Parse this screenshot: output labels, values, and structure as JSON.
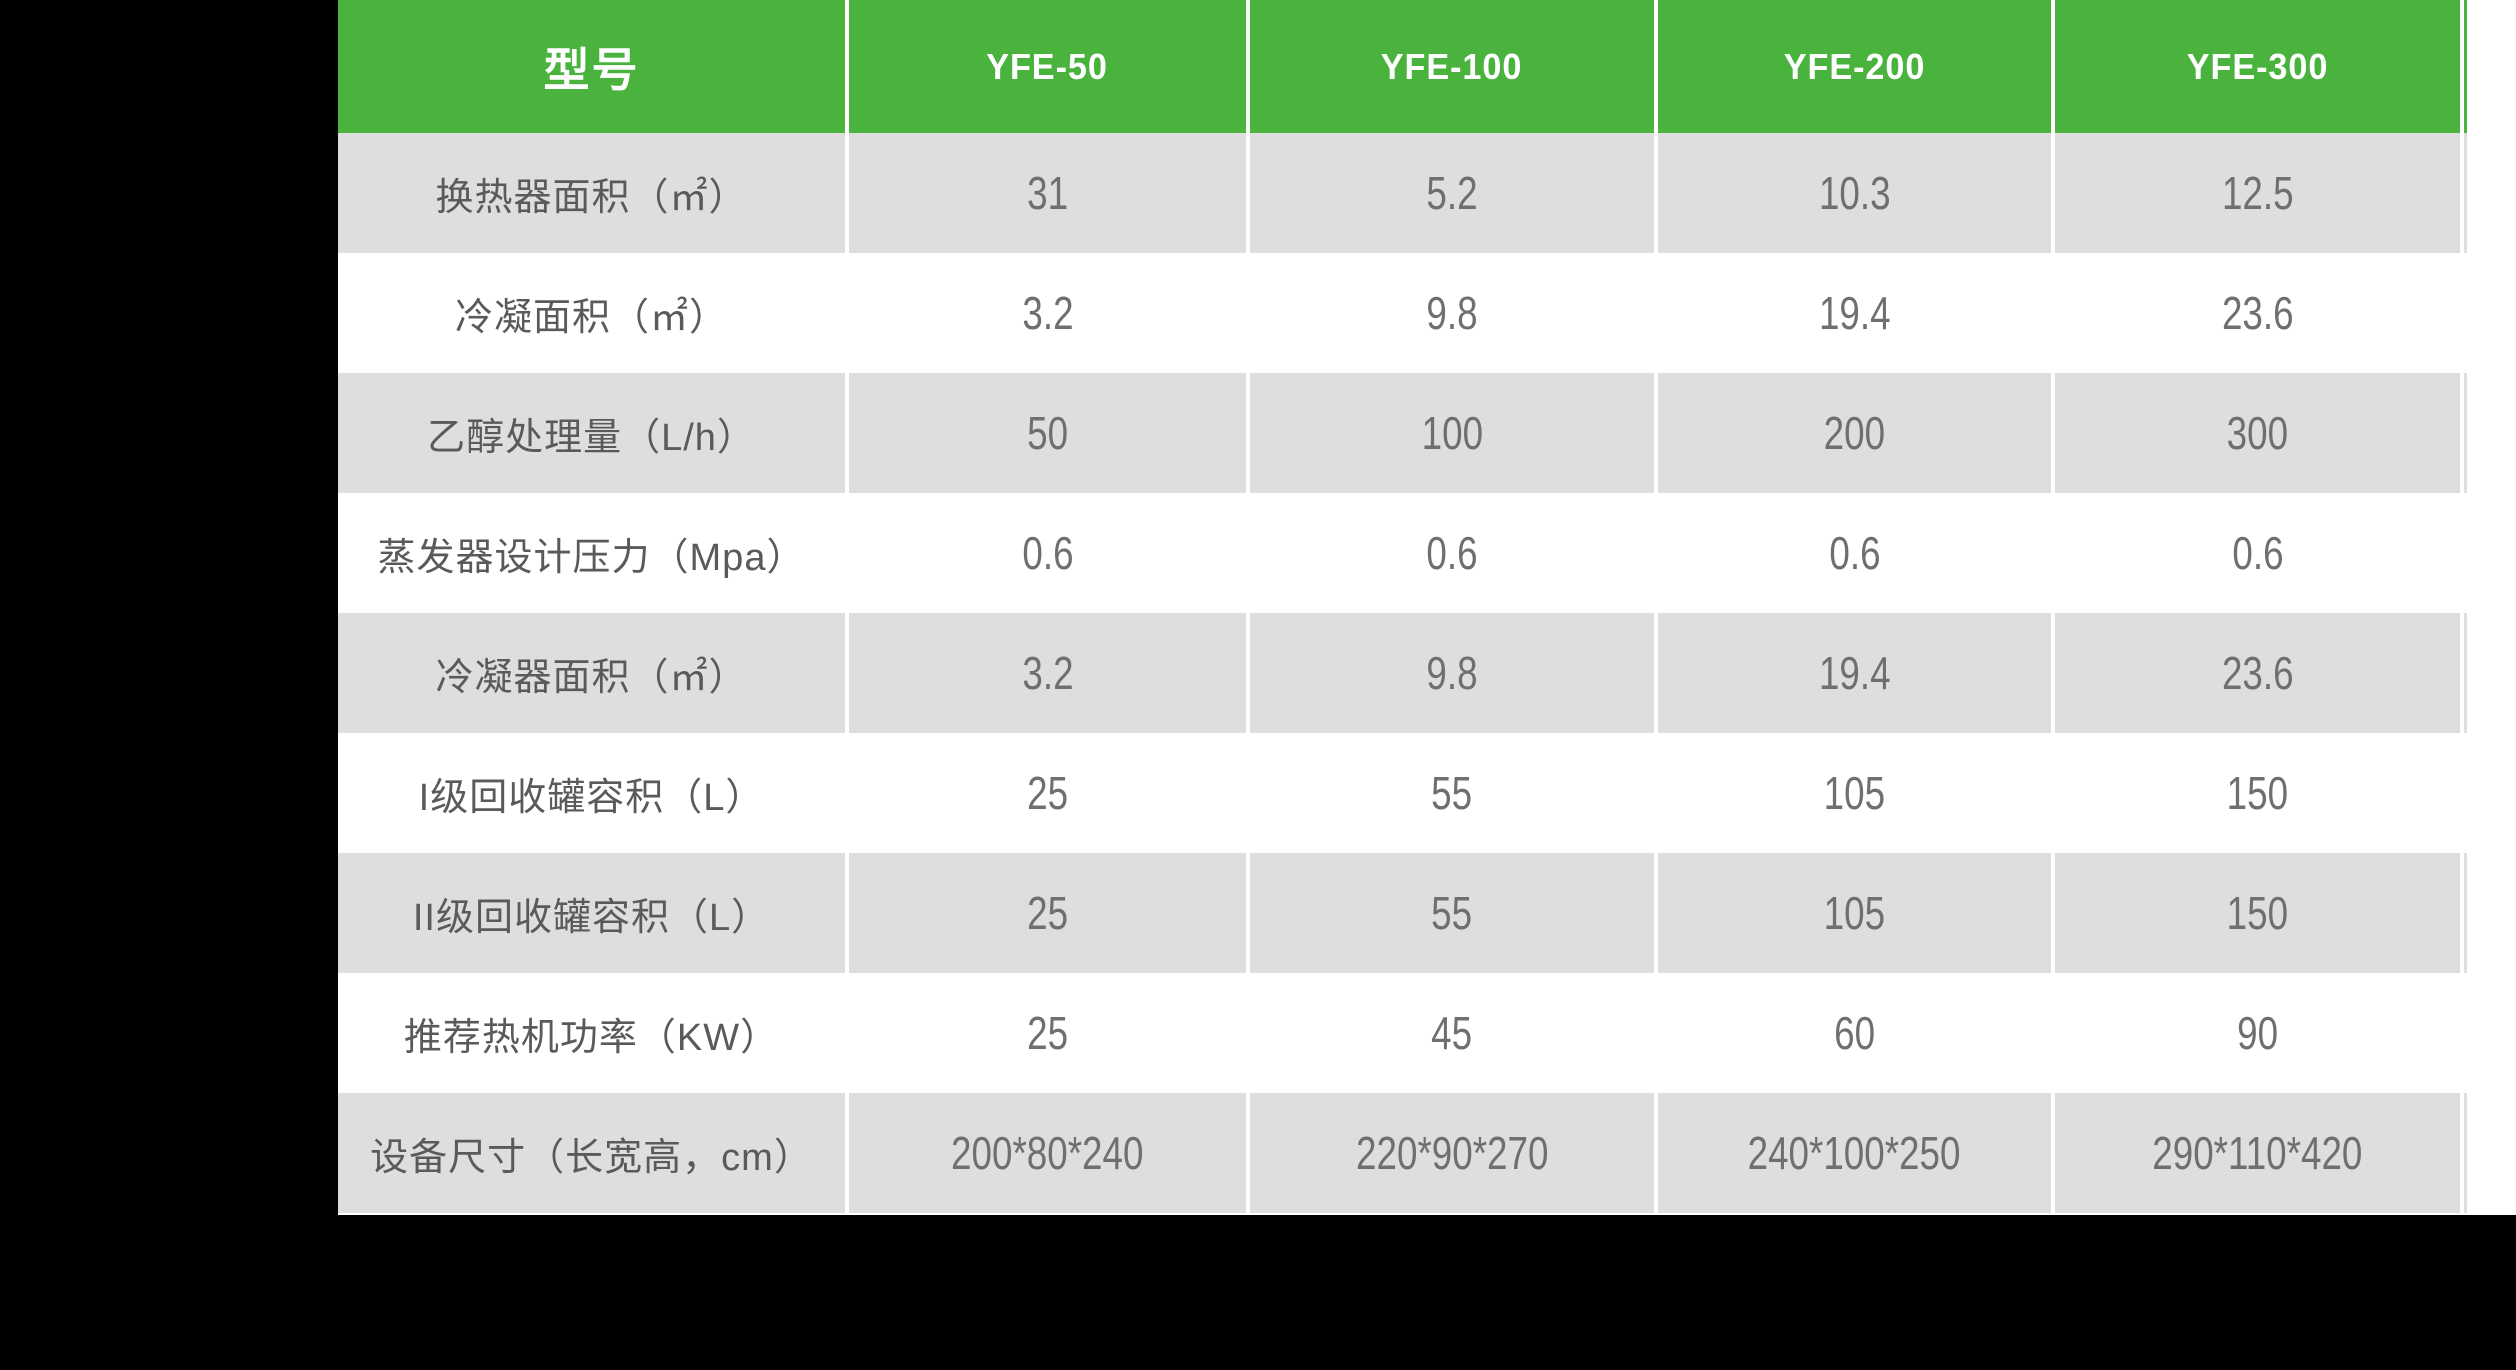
{
  "page": {
    "background": "#000000",
    "panel_background": "#ffffff"
  },
  "table": {
    "header": {
      "model_label": "型号",
      "columns": [
        "YFE-50",
        "YFE-100",
        "YFE-200",
        "YFE-300"
      ]
    },
    "rows": [
      {
        "label": "换热器面积（㎡）",
        "values": [
          "31",
          "5.2",
          "10.3",
          "12.5"
        ]
      },
      {
        "label": "冷凝面积（㎡）",
        "values": [
          "3.2",
          "9.8",
          "19.4",
          "23.6"
        ]
      },
      {
        "label": "乙醇处理量（L/h）",
        "values": [
          "50",
          "100",
          "200",
          "300"
        ]
      },
      {
        "label": "蒸发器设计压力（Mpa）",
        "values": [
          "0.6",
          "0.6",
          "0.6",
          "0.6"
        ]
      },
      {
        "label": "冷凝器面积（㎡）",
        "values": [
          "3.2",
          "9.8",
          "19.4",
          "23.6"
        ]
      },
      {
        "label": "I级回收罐容积（L）",
        "values": [
          "25",
          "55",
          "105",
          "150"
        ]
      },
      {
        "label": "II级回收罐容积（L）",
        "values": [
          "25",
          "55",
          "105",
          "150"
        ]
      },
      {
        "label": "推荐热机功率（KW）",
        "values": [
          "25",
          "45",
          "60",
          "90"
        ]
      },
      {
        "label": "设备尺寸（长宽高，cm）",
        "values": [
          "200*80*240",
          "220*90*270",
          "240*100*250",
          "290*110*420"
        ]
      }
    ],
    "colors": {
      "accent_green": "#4ab33e",
      "row_alt_gray": "#dedede",
      "row_base_white": "#ffffff",
      "header_text": "#ffffff",
      "label_text": "#5a5a5a",
      "value_text": "#6f6f6f"
    }
  }
}
